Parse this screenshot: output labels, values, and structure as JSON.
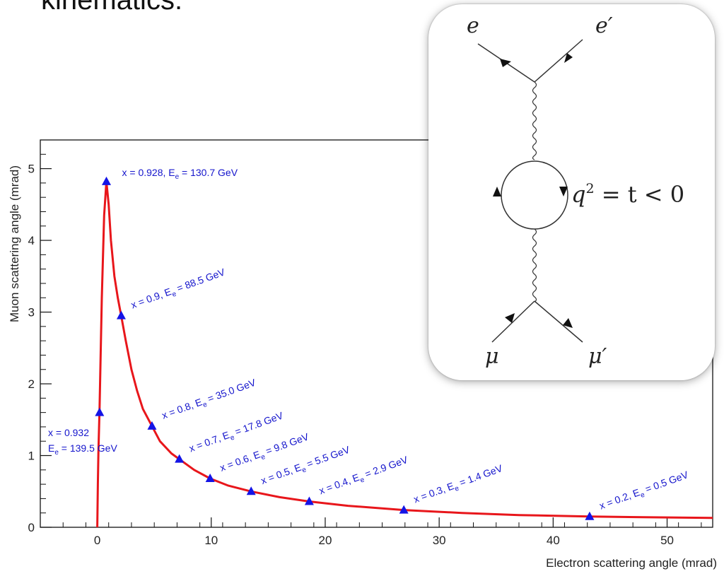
{
  "header": {
    "title_partial": "kinematics:"
  },
  "chart_data": {
    "type": "line",
    "title": "",
    "xlabel": "Electron scattering angle (mrad)",
    "ylabel": "Muon scattering angle (mrad)",
    "xlim": [
      -5,
      54
    ],
    "ylim": [
      0,
      5.4
    ],
    "x_ticks": [
      0,
      10,
      20,
      30,
      40,
      50
    ],
    "y_ticks": [
      0,
      1,
      2,
      3,
      4,
      5
    ],
    "grid": false,
    "colors": {
      "curve": "#e8161b",
      "marker": "#1414e6",
      "label": "#1414cc"
    },
    "curve": {
      "x": [
        0.0,
        0.05,
        0.1,
        0.2,
        0.4,
        0.6,
        0.8,
        1.0,
        1.2,
        1.5,
        1.8,
        2.1,
        2.5,
        3.0,
        3.5,
        4.0,
        4.8,
        5.5,
        6.5,
        7.2,
        8.5,
        9.9,
        11.5,
        13.5,
        16.0,
        18.6,
        22.0,
        26.9,
        32.0,
        37.0,
        43.2,
        48.0,
        54.0
      ],
      "y": [
        0.0,
        0.6,
        1.05,
        1.65,
        3.2,
        4.35,
        4.82,
        4.5,
        4.0,
        3.5,
        3.2,
        2.95,
        2.6,
        2.2,
        1.9,
        1.65,
        1.41,
        1.2,
        1.03,
        0.95,
        0.8,
        0.68,
        0.58,
        0.5,
        0.42,
        0.36,
        0.3,
        0.24,
        0.2,
        0.17,
        0.15,
        0.14,
        0.13
      ]
    },
    "points": [
      {
        "x": 0.2,
        "y": 1.6,
        "label": "x = 0.932",
        "label2": "E",
        "sub": "e",
        "label3": " = 139.5 GeV"
      },
      {
        "x": 0.8,
        "y": 4.82,
        "label": "x = 0.928, E",
        "sub": "e",
        "label3": " = 130.7 GeV"
      },
      {
        "x": 2.1,
        "y": 2.95,
        "label": "x = 0.9, E",
        "sub": "e",
        "label3": " = 88.5 GeV"
      },
      {
        "x": 4.8,
        "y": 1.41,
        "label": "x = 0.8, E",
        "sub": "e",
        "label3": " = 35.0 GeV"
      },
      {
        "x": 7.2,
        "y": 0.95,
        "label": "x = 0.7, E",
        "sub": "e",
        "label3": " = 17.8 GeV"
      },
      {
        "x": 9.9,
        "y": 0.68,
        "label": "x = 0.6, E",
        "sub": "e",
        "label3": " =  9.8 GeV"
      },
      {
        "x": 13.5,
        "y": 0.5,
        "label": "x = 0.5, E",
        "sub": "e",
        "label3": " =  5.5 GeV"
      },
      {
        "x": 18.6,
        "y": 0.36,
        "label": "x = 0.4, E",
        "sub": "e",
        "label3": " = 2.9 GeV"
      },
      {
        "x": 26.9,
        "y": 0.24,
        "label": "x = 0.3, E",
        "sub": "e",
        "label3": " = 1.4 GeV"
      },
      {
        "x": 43.2,
        "y": 0.15,
        "label": "x = 0.2, E",
        "sub": "e",
        "label3": " = 0.5 GeV"
      }
    ]
  },
  "feynman": {
    "labels": {
      "e_in": "e",
      "e_out": "e′",
      "mu_in": "μ",
      "mu_out": "μ′",
      "q2_main": "q",
      "q2_sup": "2",
      "q2_rest": " = t < 0"
    }
  }
}
